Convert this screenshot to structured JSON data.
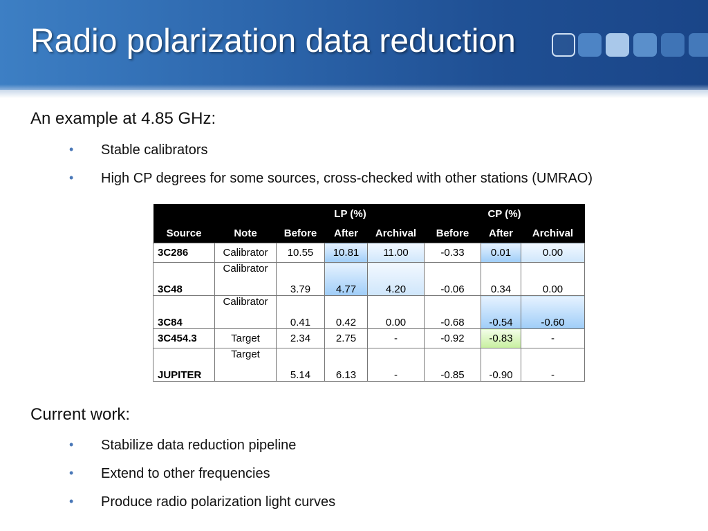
{
  "slide": {
    "title": "Radio polarization data reduction",
    "heading1": "An example at 4.85 GHz:",
    "bullets1": [
      "Stable calibrators",
      "High CP degrees for some sources, cross-checked with other stations (UMRAO)"
    ],
    "heading2": "Current work:",
    "bullets2": [
      "Stabilize data reduction pipeline",
      "Extend to other frequencies",
      "Produce radio polarization light curves"
    ],
    "bullet_symbol": "•"
  },
  "table": {
    "group_headers": {
      "lp": "LP (%)",
      "cp": "CP (%)"
    },
    "columns": [
      "Source",
      "Note",
      "Before",
      "After",
      "Archival",
      "Before",
      "After",
      "Archival"
    ],
    "rows": [
      {
        "source": "3C286",
        "note": "Calibrator",
        "lp_before": "10.55",
        "lp_after": "10.81",
        "lp_archival": "11.00",
        "cp_before": "-0.33",
        "cp_after": "0.01",
        "cp_archival": "0.00"
      },
      {
        "source": "3C48",
        "note": "Calibrator",
        "lp_before": "3.79",
        "lp_after": "4.77",
        "lp_archival": "4.20",
        "cp_before": "-0.06",
        "cp_after": "0.34",
        "cp_archival": "0.00"
      },
      {
        "source": "3C84",
        "note": "Calibrator",
        "lp_before": "0.41",
        "lp_after": "0.42",
        "lp_archival": "0.00",
        "cp_before": "-0.68",
        "cp_after": "-0.54",
        "cp_archival": "-0.60"
      },
      {
        "source": "3C454.3",
        "note": "Target",
        "lp_before": "2.34",
        "lp_after": "2.75",
        "lp_archival": "-",
        "cp_before": "-0.92",
        "cp_after": "-0.83",
        "cp_archival": "-"
      },
      {
        "source": "JUPITER",
        "note": "Target",
        "lp_before": "5.14",
        "lp_after": "6.13",
        "lp_archival": "-",
        "cp_before": "-0.85",
        "cp_after": "-0.90",
        "cp_archival": "-"
      }
    ]
  },
  "colors": {
    "header_blue": "#2d67ad",
    "highlight_blue": "#9fcdf8",
    "highlight_green": "#c7ef9f",
    "bullet_dot": "#4a78b8"
  }
}
